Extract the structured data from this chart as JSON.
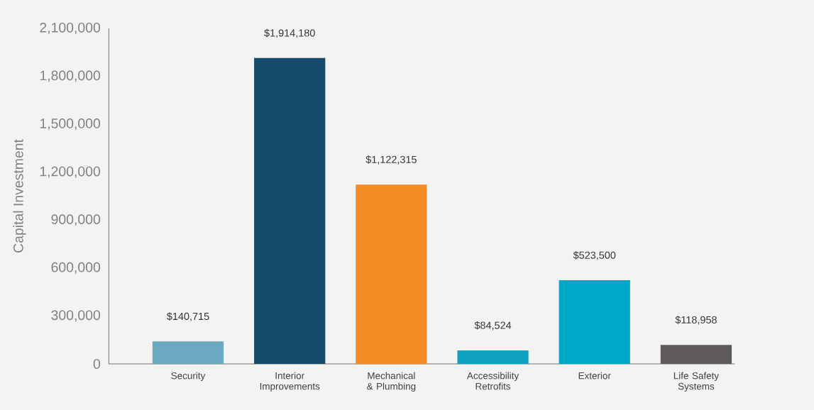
{
  "chart_data": {
    "type": "bar",
    "ylabel": "Capital Investment",
    "categories": [
      "Security",
      "Interior Improvements",
      "Mechanical & Plumbing",
      "Accessibility Retrofits",
      "Exterior",
      "Life Safety Systems"
    ],
    "values": [
      140715,
      1914180,
      1122315,
      84524,
      523500,
      118958
    ],
    "colors": [
      "#6aa9bf",
      "#144b6b",
      "#f48b24",
      "#0ea1c0",
      "#00a8c8",
      "#605b5b"
    ],
    "value_labels": [
      "$140,715",
      "$1,914,180",
      "$1,122,315",
      "$84,524",
      "$523,500",
      "$118,958"
    ],
    "ylim": [
      0,
      2100000
    ],
    "yticks": [
      {
        "value": 0,
        "label": "0"
      },
      {
        "value": 300000,
        "label": "300,000"
      },
      {
        "value": 600000,
        "label": "600,000"
      },
      {
        "value": 900000,
        "label": "900,000"
      },
      {
        "value": 1200000,
        "label": "1,200,000"
      },
      {
        "value": 1500000,
        "label": "1,500,000"
      },
      {
        "value": 1800000,
        "label": "1,800,000"
      },
      {
        "value": 2100000,
        "label": "2,100,000"
      }
    ],
    "grid": false
  }
}
